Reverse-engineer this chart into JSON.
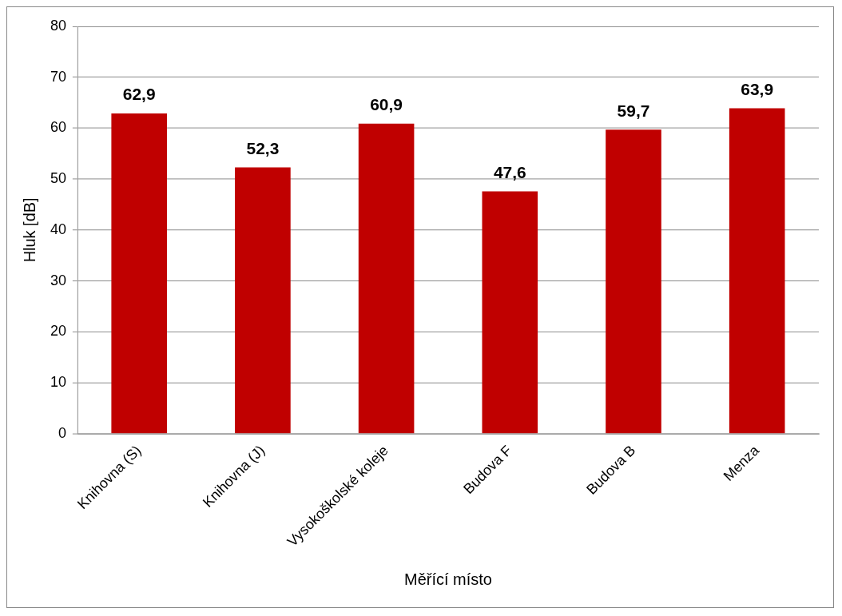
{
  "chart_data": {
    "type": "bar",
    "xlabel": "Měřící místo",
    "ylabel": "Hluk [dB]",
    "categories": [
      "Knihovna (S)",
      "Knihovna (J)",
      "Vysokoškolské koleje",
      "Budova F",
      "Budova B",
      "Menza"
    ],
    "values": [
      62.9,
      52.3,
      60.9,
      47.6,
      59.7,
      63.9
    ],
    "value_labels": [
      "62,9",
      "52,3",
      "60,9",
      "47,6",
      "59,7",
      "63,9"
    ],
    "color": "#c00000",
    "ylim": [
      0,
      80
    ],
    "yticks": [
      0,
      10,
      20,
      30,
      40,
      50,
      60,
      70,
      80
    ],
    "grid": "y",
    "legend": false
  }
}
